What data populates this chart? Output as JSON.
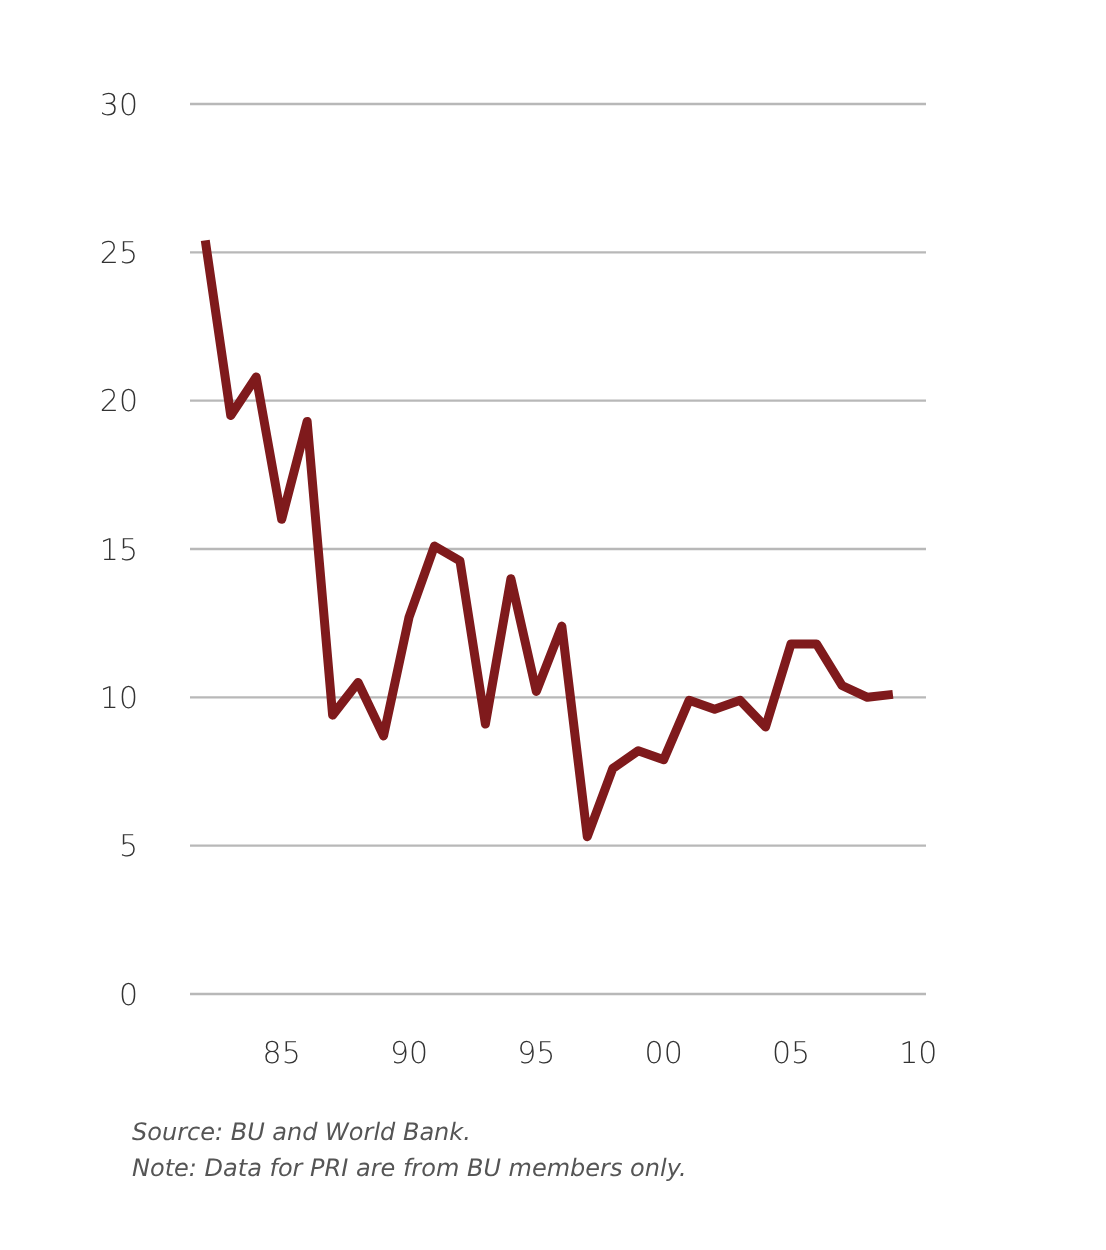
{
  "chart_data": {
    "type": "line",
    "x": [
      1982,
      1983,
      1984,
      1985,
      1986,
      1987,
      1988,
      1989,
      1990,
      1991,
      1992,
      1993,
      1994,
      1995,
      1996,
      1997,
      1998,
      1999,
      2000,
      2001,
      2002,
      2003,
      2004,
      2005,
      2006,
      2007,
      2008,
      2009
    ],
    "series": [
      {
        "color": "#7f1a1c",
        "values": [
          25.4,
          19.5,
          20.8,
          16.0,
          19.3,
          9.4,
          10.5,
          8.7,
          12.7,
          15.1,
          14.6,
          9.1,
          14.0,
          10.2,
          12.4,
          5.3,
          7.6,
          8.2,
          7.9,
          9.9,
          9.6,
          9.9,
          9.0,
          11.8,
          11.8,
          10.4,
          10.0,
          10.1
        ]
      }
    ],
    "xlim": [
      1981.4,
      2010.3
    ],
    "xticks": [
      {
        "value": 1985,
        "label": "85"
      },
      {
        "value": 1990,
        "label": "90"
      },
      {
        "value": 1995,
        "label": "95"
      },
      {
        "value": 2000,
        "label": "00"
      },
      {
        "value": 2005,
        "label": "05"
      },
      {
        "value": 2010,
        "label": "10"
      }
    ],
    "ylim": [
      0,
      30
    ],
    "yticks": [
      0,
      5,
      10,
      15,
      20,
      25,
      30
    ],
    "grid": "y",
    "legend": false,
    "marker": "none",
    "line_style": "solid",
    "annotations": [
      "Source: BU and World Bank.",
      "Note: Data for PRI are from BU members only."
    ]
  }
}
